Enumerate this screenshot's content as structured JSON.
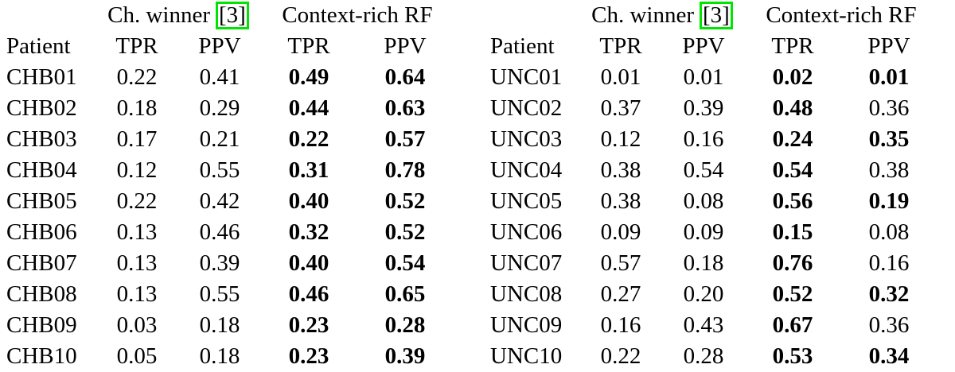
{
  "page": {
    "background": "#ffffff",
    "text_color": "#000000"
  },
  "citation": {
    "border_color": "#00e400"
  },
  "tables": [
    {
      "id": "chb",
      "group_headers": {
        "method1": {
          "label": "Ch. winner",
          "citation": "[3]"
        },
        "method2": {
          "label": "Context-rich RF"
        }
      },
      "column_headers": [
        "Patient",
        "TPR",
        "PPV",
        "TPR",
        "PPV"
      ],
      "rows": [
        {
          "patient": "CHB01",
          "values": [
            "0.22",
            "0.41",
            "0.49",
            "0.64"
          ],
          "bold": [
            false,
            false,
            true,
            true
          ]
        },
        {
          "patient": "CHB02",
          "values": [
            "0.18",
            "0.29",
            "0.44",
            "0.63"
          ],
          "bold": [
            false,
            false,
            true,
            true
          ]
        },
        {
          "patient": "CHB03",
          "values": [
            "0.17",
            "0.21",
            "0.22",
            "0.57"
          ],
          "bold": [
            false,
            false,
            true,
            true
          ]
        },
        {
          "patient": "CHB04",
          "values": [
            "0.12",
            "0.55",
            "0.31",
            "0.78"
          ],
          "bold": [
            false,
            false,
            true,
            true
          ]
        },
        {
          "patient": "CHB05",
          "values": [
            "0.22",
            "0.42",
            "0.40",
            "0.52"
          ],
          "bold": [
            false,
            false,
            true,
            true
          ]
        },
        {
          "patient": "CHB06",
          "values": [
            "0.13",
            "0.46",
            "0.32",
            "0.52"
          ],
          "bold": [
            false,
            false,
            true,
            true
          ]
        },
        {
          "patient": "CHB07",
          "values": [
            "0.13",
            "0.39",
            "0.40",
            "0.54"
          ],
          "bold": [
            false,
            false,
            true,
            true
          ]
        },
        {
          "patient": "CHB08",
          "values": [
            "0.13",
            "0.55",
            "0.46",
            "0.65"
          ],
          "bold": [
            false,
            false,
            true,
            true
          ]
        },
        {
          "patient": "CHB09",
          "values": [
            "0.03",
            "0.18",
            "0.23",
            "0.28"
          ],
          "bold": [
            false,
            false,
            true,
            true
          ]
        },
        {
          "patient": "CHB10",
          "values": [
            "0.05",
            "0.18",
            "0.23",
            "0.39"
          ],
          "bold": [
            false,
            false,
            true,
            true
          ]
        }
      ]
    },
    {
      "id": "unc",
      "group_headers": {
        "method1": {
          "label": "Ch. winner",
          "citation": "[3]"
        },
        "method2": {
          "label": "Context-rich RF"
        }
      },
      "column_headers": [
        "Patient",
        "TPR",
        "PPV",
        "TPR",
        "PPV"
      ],
      "rows": [
        {
          "patient": "UNC01",
          "values": [
            "0.01",
            "0.01",
            "0.02",
            "0.01"
          ],
          "bold": [
            false,
            false,
            true,
            true
          ]
        },
        {
          "patient": "UNC02",
          "values": [
            "0.37",
            "0.39",
            "0.48",
            "0.36"
          ],
          "bold": [
            false,
            false,
            true,
            false
          ]
        },
        {
          "patient": "UNC03",
          "values": [
            "0.12",
            "0.16",
            "0.24",
            "0.35"
          ],
          "bold": [
            false,
            false,
            true,
            true
          ]
        },
        {
          "patient": "UNC04",
          "values": [
            "0.38",
            "0.54",
            "0.54",
            "0.38"
          ],
          "bold": [
            false,
            false,
            true,
            false
          ]
        },
        {
          "patient": "UNC05",
          "values": [
            "0.38",
            "0.08",
            "0.56",
            "0.19"
          ],
          "bold": [
            false,
            false,
            true,
            true
          ]
        },
        {
          "patient": "UNC06",
          "values": [
            "0.09",
            "0.09",
            "0.15",
            "0.08"
          ],
          "bold": [
            false,
            false,
            true,
            false
          ]
        },
        {
          "patient": "UNC07",
          "values": [
            "0.57",
            "0.18",
            "0.76",
            "0.16"
          ],
          "bold": [
            false,
            false,
            true,
            false
          ]
        },
        {
          "patient": "UNC08",
          "values": [
            "0.27",
            "0.20",
            "0.52",
            "0.32"
          ],
          "bold": [
            false,
            false,
            true,
            true
          ]
        },
        {
          "patient": "UNC09",
          "values": [
            "0.16",
            "0.43",
            "0.67",
            "0.36"
          ],
          "bold": [
            false,
            false,
            true,
            false
          ]
        },
        {
          "patient": "UNC10",
          "values": [
            "0.22",
            "0.28",
            "0.53",
            "0.34"
          ],
          "bold": [
            false,
            false,
            true,
            true
          ]
        }
      ]
    }
  ]
}
